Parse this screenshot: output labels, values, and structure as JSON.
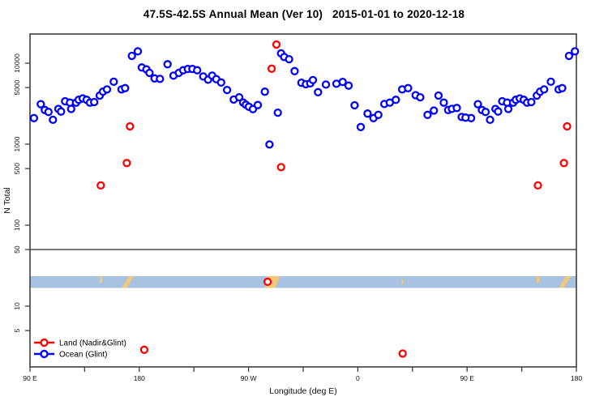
{
  "chart_data": {
    "type": "scatter",
    "title": "47.5S-42.5S Annual Mean (Ver 10)   2015-01-01 to 2020-12-18",
    "xlabel": "Longitude (deg E)",
    "ylabel": "N Total",
    "x_axis": {
      "range_deg": [
        90,
        540
      ],
      "minor_tick_step_deg": 45,
      "major_ticks": [
        {
          "lon": 90,
          "label": "90 E"
        },
        {
          "lon": 180,
          "label": "180"
        },
        {
          "lon": 270,
          "label": "90 W"
        },
        {
          "lon": 360,
          "label": "0"
        },
        {
          "lon": 450,
          "label": "90 E"
        },
        {
          "lon": 540,
          "label": "180"
        }
      ]
    },
    "y_axis": {
      "scale": "log10",
      "range": [
        1.7,
        23000
      ],
      "ticks": [
        {
          "value": 10000,
          "label": "10000"
        },
        {
          "value": 5000,
          "label": "5000"
        },
        {
          "value": 1000,
          "label": "1000"
        },
        {
          "value": 500,
          "label": "500"
        },
        {
          "value": 100,
          "label": "100"
        },
        {
          "value": 50,
          "label": "50"
        },
        {
          "value": 10,
          "label": "10"
        },
        {
          "value": 5,
          "label": "5"
        }
      ]
    },
    "reference_line_value": 50,
    "wrap": {
      "duplicate_below_lon": 180,
      "offset_deg": 360
    },
    "strip": {
      "top_value": 23.5,
      "bottom_value": 16.8,
      "ocean_color": "#a9c2e2",
      "land_color": "#f3c878",
      "land_polygons": [
        [
          [
            147.3,
            0
          ],
          [
            149.4,
            0
          ],
          [
            149.4,
            0.55
          ],
          [
            147.3,
            0.55
          ]
        ],
        [
          [
            165.5,
            1
          ],
          [
            169.5,
            1
          ],
          [
            175.5,
            0
          ],
          [
            171.5,
            0
          ]
        ],
        [
          [
            283.5,
            1
          ],
          [
            292.0,
            1
          ],
          [
            295.7,
            0
          ],
          [
            285.0,
            0
          ]
        ],
        [
          [
            396.2,
            0.25
          ],
          [
            397.4,
            0.25
          ],
          [
            397.4,
            0.7
          ],
          [
            396.2,
            0.7
          ]
        ],
        [
          [
            507.3,
            0
          ],
          [
            509.4,
            0
          ],
          [
            509.4,
            0.55
          ],
          [
            507.3,
            0.55
          ]
        ],
        [
          [
            525.5,
            1
          ],
          [
            529.5,
            1
          ],
          [
            535.5,
            0
          ],
          [
            531.5,
            0
          ]
        ]
      ]
    },
    "legend": {
      "items": [
        {
          "label": "Land (Nadir&Glint)",
          "color": "#ff0000"
        },
        {
          "label": "Ocean (Glint)",
          "color": "#0000ff"
        }
      ]
    },
    "series": [
      {
        "name": "Ocean (Glint)",
        "color": "#0000ff",
        "points": [
          [
            93.3,
            2100
          ],
          [
            98.9,
            3120
          ],
          [
            102.2,
            2640
          ],
          [
            105.2,
            2500
          ],
          [
            108.9,
            2000
          ],
          [
            113.4,
            2720
          ],
          [
            115.6,
            2530
          ],
          [
            118.9,
            3390
          ],
          [
            122.9,
            3260
          ],
          [
            123.9,
            2720
          ],
          [
            127.9,
            3260
          ],
          [
            130.1,
            3530
          ],
          [
            133.4,
            3670
          ],
          [
            136.7,
            3530
          ],
          [
            139.4,
            3260
          ],
          [
            142.9,
            3310
          ],
          [
            147.4,
            3980
          ],
          [
            150.1,
            4460
          ],
          [
            153.4,
            4740
          ],
          [
            159,
            5900
          ],
          [
            165.4,
            4740
          ],
          [
            168.3,
            4920
          ],
          [
            173.9,
            12300
          ],
          [
            178.8,
            14000
          ],
          [
            182.1,
            8850
          ],
          [
            185.9,
            8400
          ],
          [
            188.4,
            7580
          ],
          [
            192.6,
            6480
          ],
          [
            197,
            6390
          ],
          [
            203.3,
            9700
          ],
          [
            208.2,
            7020
          ],
          [
            212.6,
            7580
          ],
          [
            216.2,
            8180
          ],
          [
            220,
            8500
          ],
          [
            223.7,
            8500
          ],
          [
            227.7,
            8180
          ],
          [
            232.7,
            6850
          ],
          [
            236.7,
            6250
          ],
          [
            240,
            7020
          ],
          [
            243.4,
            6350
          ],
          [
            247.4,
            5780
          ],
          [
            252.3,
            4670
          ],
          [
            257.8,
            3560
          ],
          [
            262.3,
            3790
          ],
          [
            265.6,
            3260
          ],
          [
            267.8,
            3070
          ],
          [
            270.3,
            2900
          ],
          [
            273.6,
            2710
          ],
          [
            277.6,
            3040
          ],
          [
            283.4,
            4450
          ],
          [
            287.2,
            990
          ],
          [
            294.1,
            2450
          ],
          [
            296.8,
            13200
          ],
          [
            299.4,
            11900
          ],
          [
            303.4,
            11200
          ],
          [
            307.9,
            7980
          ],
          [
            313.5,
            5740
          ],
          [
            317.2,
            5500
          ],
          [
            320.8,
            5630
          ],
          [
            323,
            6180
          ],
          [
            327.2,
            4390
          ],
          [
            333.7,
            5450
          ],
          [
            342.4,
            5570
          ],
          [
            347.5,
            5870
          ],
          [
            352.4,
            5280
          ],
          [
            357.3,
            3020
          ],
          [
            362.4,
            1630
          ],
          [
            368,
            2390
          ],
          [
            372.9,
            2100
          ],
          [
            376.9,
            2300
          ],
          [
            381.8,
            3130
          ],
          [
            386.3,
            3260
          ],
          [
            391.3,
            3530
          ],
          [
            396.5,
            4740
          ],
          [
            401.4,
            4920
          ],
          [
            407.6,
            4030
          ],
          [
            411.4,
            3790
          ],
          [
            417.4,
            2300
          ],
          [
            422.6,
            2600
          ],
          [
            426.4,
            3980
          ],
          [
            430.8,
            3260
          ],
          [
            434.4,
            2640
          ],
          [
            437.5,
            2730
          ],
          [
            441.5,
            2800
          ],
          [
            445.5,
            2170
          ],
          [
            448.7,
            2130
          ]
        ]
      },
      {
        "name": "Land (Nadir&Glint)",
        "color": "#ff0000",
        "points": [
          [
            148.3,
            310
          ],
          [
            169.7,
            585
          ],
          [
            172.3,
            1660
          ],
          [
            184.1,
            2.9
          ],
          [
            285.7,
            20
          ],
          [
            289,
            8560
          ],
          [
            293,
            17000
          ],
          [
            296.8,
            520
          ],
          [
            396.9,
            2.6
          ]
        ]
      }
    ]
  }
}
